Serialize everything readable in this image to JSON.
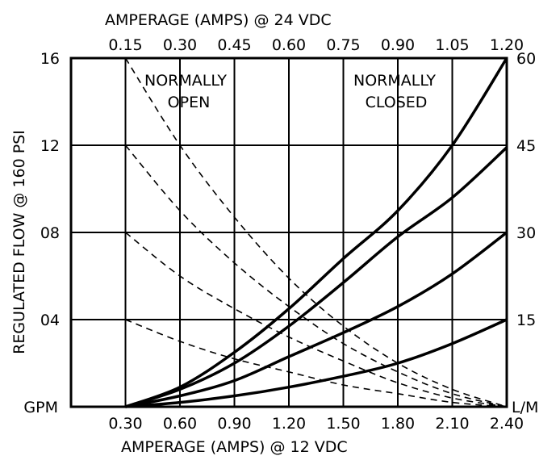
{
  "chart_data": {
    "type": "line",
    "top_axis": {
      "label": "AMPERAGE (AMPS) @ 24 VDC",
      "ticks": [
        "0.15",
        "0.30",
        "0.45",
        "0.60",
        "0.75",
        "0.90",
        "1.05",
        "1.20"
      ]
    },
    "bottom_axis": {
      "label": "AMPERAGE (AMPS) @ 12 VDC",
      "ticks": [
        "0.30",
        "0.60",
        "0.90",
        "1.20",
        "1.50",
        "1.80",
        "2.10",
        "2.40"
      ],
      "xlim": [
        0,
        2.4
      ]
    },
    "left_axis": {
      "label": "REGULATED FLOW @ 160 PSI",
      "unit": "GPM",
      "ticks": [
        "04",
        "08",
        "12",
        "16"
      ],
      "tick_values": [
        4,
        8,
        12,
        16
      ],
      "ylim": [
        0,
        16
      ]
    },
    "right_axis": {
      "unit": "L/M",
      "ticks": [
        "15",
        "30",
        "45",
        "60"
      ],
      "tick_values": [
        4,
        8,
        12,
        16
      ]
    },
    "annotations": {
      "normally_open_line1": "NORMALLY",
      "normally_open_line2": "OPEN",
      "normally_closed_line1": "NORMALLY",
      "normally_closed_line2": "CLOSED"
    },
    "series": [
      {
        "style": "solid",
        "points": [
          [
            0.3,
            0
          ],
          [
            0.6,
            0.9
          ],
          [
            0.9,
            2.5
          ],
          [
            1.2,
            4.5
          ],
          [
            1.5,
            6.8
          ],
          [
            1.8,
            9.0
          ],
          [
            2.1,
            12
          ],
          [
            2.4,
            16
          ]
        ]
      },
      {
        "style": "solid",
        "points": [
          [
            0.3,
            0
          ],
          [
            0.6,
            0.8
          ],
          [
            0.9,
            2.0
          ],
          [
            1.2,
            3.7
          ],
          [
            1.5,
            5.7
          ],
          [
            1.8,
            7.8
          ],
          [
            2.1,
            9.6
          ],
          [
            2.4,
            11.9
          ]
        ]
      },
      {
        "style": "solid",
        "points": [
          [
            0.3,
            0
          ],
          [
            0.6,
            0.5
          ],
          [
            0.9,
            1.2
          ],
          [
            1.2,
            2.3
          ],
          [
            1.5,
            3.4
          ],
          [
            1.8,
            4.6
          ],
          [
            2.1,
            6.1
          ],
          [
            2.4,
            8
          ]
        ]
      },
      {
        "style": "solid",
        "points": [
          [
            0.3,
            0
          ],
          [
            0.6,
            0.2
          ],
          [
            0.9,
            0.5
          ],
          [
            1.2,
            0.9
          ],
          [
            1.5,
            1.4
          ],
          [
            1.8,
            2.0
          ],
          [
            2.1,
            2.9
          ],
          [
            2.4,
            4
          ]
        ]
      },
      {
        "style": "dashed",
        "points": [
          [
            0.3,
            16
          ],
          [
            0.6,
            12
          ],
          [
            0.9,
            8.7
          ],
          [
            1.2,
            5.9
          ],
          [
            1.5,
            3.7
          ],
          [
            1.8,
            2.0
          ],
          [
            2.1,
            0.8
          ],
          [
            2.4,
            0
          ]
        ]
      },
      {
        "style": "dashed",
        "points": [
          [
            0.3,
            12
          ],
          [
            0.6,
            9.0
          ],
          [
            0.9,
            6.6
          ],
          [
            1.2,
            4.6
          ],
          [
            1.5,
            2.9
          ],
          [
            1.8,
            1.6
          ],
          [
            2.1,
            0.6
          ],
          [
            2.4,
            0
          ]
        ]
      },
      {
        "style": "dashed",
        "points": [
          [
            0.3,
            8
          ],
          [
            0.6,
            6.0
          ],
          [
            0.9,
            4.5
          ],
          [
            1.2,
            3.2
          ],
          [
            1.5,
            2.1
          ],
          [
            1.8,
            1.1
          ],
          [
            2.1,
            0.4
          ],
          [
            2.4,
            0
          ]
        ]
      },
      {
        "style": "dashed",
        "points": [
          [
            0.3,
            4
          ],
          [
            0.6,
            3.0
          ],
          [
            0.9,
            2.2
          ],
          [
            1.2,
            1.6
          ],
          [
            1.5,
            1.0
          ],
          [
            1.8,
            0.6
          ],
          [
            2.1,
            0.2
          ],
          [
            2.4,
            0
          ]
        ]
      }
    ]
  }
}
